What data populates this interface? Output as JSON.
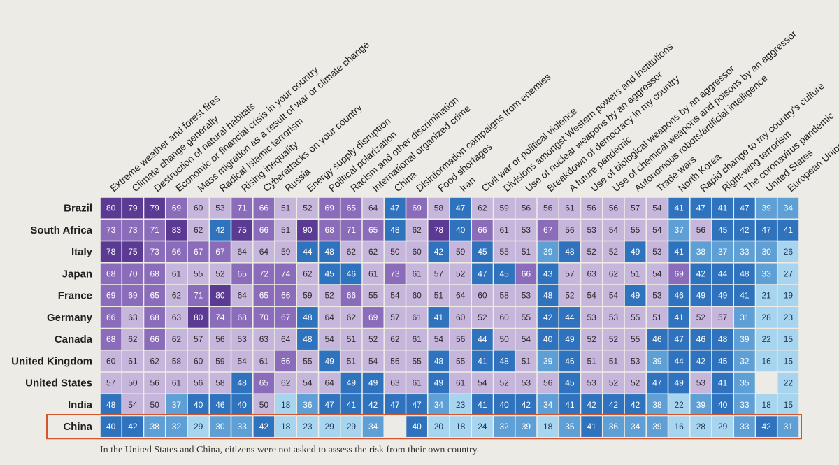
{
  "chart_data": {
    "type": "heatmap",
    "x_labels": [
      "Extreme weather and forest fires",
      "Climate change generally",
      "Destruction of natural habitats",
      "Economic or financial crisis in your country",
      "Mass migration as a result of war or climate change",
      "Radical Islamic terrorism",
      "Rising inequality",
      "Cyberattacks on your country",
      "Russia",
      "Energy supply disruption",
      "Political polarization",
      "Racism and other discrimination",
      "International organized crime",
      "China",
      "Disinformation campaigns from enemies",
      "Food shortages",
      "Iran",
      "Civil war or political violence",
      "Divisions amongst Western powers and institutions",
      "Use of nuclear weapons by an aggressor",
      "Breakdown of democracy in my country",
      "A future pandemic",
      "Use of biological weapons by an aggressor",
      "Use of chemical weapons and poisons by an aggressor",
      "Autonomous robots/artificial intelligence",
      "Trade wars",
      "North Korea",
      "Rapid change to my country's culture",
      "Right-wing terrorism",
      "The coronavirus pandemic",
      "United States",
      "European Union"
    ],
    "y_labels": [
      "Brazil",
      "South Africa",
      "Italy",
      "Japan",
      "France",
      "Germany",
      "Canada",
      "United Kingdom",
      "United States",
      "India",
      "China"
    ],
    "values": [
      [
        80,
        79,
        79,
        69,
        60,
        53,
        71,
        66,
        51,
        52,
        69,
        65,
        64,
        47,
        69,
        58,
        47,
        62,
        59,
        56,
        56,
        61,
        56,
        56,
        57,
        54,
        41,
        47,
        41,
        47,
        39,
        34
      ],
      [
        73,
        73,
        71,
        83,
        62,
        42,
        75,
        66,
        51,
        90,
        68,
        71,
        65,
        48,
        62,
        78,
        40,
        66,
        61,
        53,
        67,
        56,
        53,
        54,
        55,
        54,
        37,
        56,
        45,
        42,
        47,
        41
      ],
      [
        78,
        75,
        73,
        66,
        67,
        67,
        64,
        64,
        59,
        44,
        48,
        62,
        62,
        50,
        60,
        42,
        59,
        45,
        55,
        51,
        39,
        48,
        52,
        52,
        49,
        53,
        41,
        38,
        37,
        33,
        30,
        26
      ],
      [
        68,
        70,
        68,
        61,
        55,
        52,
        65,
        72,
        74,
        62,
        45,
        46,
        61,
        73,
        61,
        57,
        52,
        47,
        45,
        66,
        43,
        57,
        63,
        62,
        51,
        54,
        69,
        42,
        44,
        48,
        33,
        27
      ],
      [
        69,
        69,
        65,
        62,
        71,
        80,
        64,
        65,
        66,
        59,
        52,
        66,
        55,
        54,
        60,
        51,
        64,
        60,
        58,
        53,
        48,
        52,
        54,
        54,
        49,
        53,
        46,
        49,
        49,
        41,
        21,
        19
      ],
      [
        66,
        63,
        68,
        63,
        80,
        74,
        68,
        70,
        67,
        48,
        64,
        62,
        69,
        57,
        61,
        41,
        60,
        52,
        60,
        55,
        42,
        44,
        53,
        53,
        55,
        51,
        41,
        52,
        57,
        31,
        28,
        23
      ],
      [
        68,
        62,
        66,
        62,
        57,
        56,
        53,
        63,
        64,
        48,
        54,
        51,
        52,
        62,
        61,
        54,
        56,
        44,
        50,
        54,
        40,
        49,
        52,
        52,
        55,
        46,
        47,
        46,
        48,
        39,
        22,
        15
      ],
      [
        60,
        61,
        62,
        58,
        60,
        59,
        54,
        61,
        66,
        55,
        49,
        51,
        54,
        56,
        55,
        48,
        55,
        41,
        48,
        51,
        39,
        46,
        51,
        51,
        53,
        39,
        44,
        42,
        45,
        32,
        16,
        15
      ],
      [
        57,
        50,
        56,
        61,
        56,
        58,
        48,
        65,
        62,
        54,
        64,
        49,
        49,
        63,
        61,
        49,
        61,
        54,
        52,
        53,
        56,
        45,
        53,
        52,
        52,
        47,
        49,
        53,
        41,
        35,
        null,
        22
      ],
      [
        48,
        54,
        50,
        37,
        40,
        46,
        40,
        50,
        18,
        36,
        47,
        41,
        42,
        47,
        47,
        34,
        23,
        41,
        40,
        42,
        34,
        41,
        42,
        42,
        42,
        38,
        22,
        39,
        40,
        33,
        18,
        15
      ],
      [
        40,
        42,
        38,
        32,
        29,
        30,
        33,
        42,
        18,
        23,
        29,
        29,
        34,
        null,
        40,
        20,
        18,
        24,
        32,
        39,
        18,
        35,
        41,
        36,
        34,
        39,
        16,
        28,
        29,
        33,
        42,
        31
      ]
    ],
    "highlight_row": "China",
    "colors": {
      "purple_high": "#5a3a92",
      "purple_mid": "#8a6cbb",
      "purple_low": "#c7b6dc",
      "blue_high": "#2f72bd",
      "blue_mid": "#5e9fd6",
      "blue_low": "#a7d4ef",
      "highlight_border": "#d8542b"
    }
  },
  "footnote": "In the United States and China, citizens were not asked to assess the risk from their own country."
}
